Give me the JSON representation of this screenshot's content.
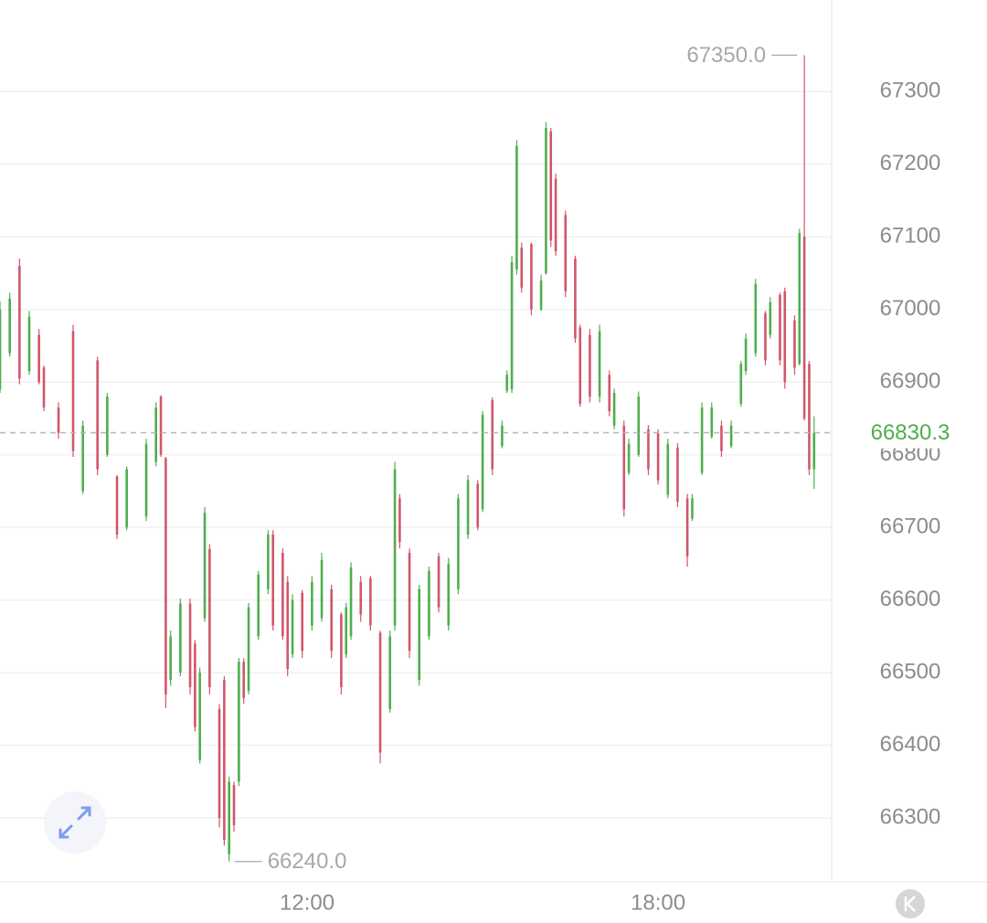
{
  "chart_data": {
    "type": "candlestick",
    "colors": {
      "up": "#4fae4e",
      "down": "#d2566a"
    },
    "xlim": [
      405,
      1258
    ],
    "ylim": [
      66212,
      67426
    ],
    "xticks": [
      {
        "value": 720,
        "label": "12:00"
      },
      {
        "value": 1080,
        "label": "18:00"
      }
    ],
    "yticks": [
      66300,
      66400,
      66500,
      66600,
      66700,
      66800,
      66900,
      67000,
      67100,
      67200,
      67300
    ],
    "grid": true,
    "last_price": {
      "value": 66830.3,
      "label": "66830.3"
    },
    "annotations": [
      {
        "value": 67350,
        "label": "67350.0"
      },
      {
        "value": 66240,
        "label": "66240.0"
      }
    ],
    "x": [
      405,
      415,
      425,
      435,
      445,
      450,
      465,
      480,
      490,
      505,
      515,
      525,
      535,
      555,
      565,
      570,
      575,
      580,
      590,
      600,
      605,
      610,
      615,
      620,
      630,
      635,
      640,
      645,
      650,
      655,
      660,
      670,
      680,
      685,
      695,
      700,
      705,
      715,
      725,
      735,
      745,
      755,
      760,
      765,
      775,
      785,
      795,
      805,
      810,
      815,
      825,
      835,
      845,
      855,
      865,
      875,
      885,
      895,
      900,
      910,
      920,
      925,
      930,
      935,
      940,
      950,
      960,
      965,
      970,
      975,
      985,
      995,
      1000,
      1010,
      1020,
      1030,
      1035,
      1045,
      1050,
      1060,
      1070,
      1080,
      1090,
      1100,
      1110,
      1115,
      1125,
      1135,
      1145,
      1155,
      1165,
      1170,
      1180,
      1190,
      1195,
      1205,
      1210,
      1220,
      1225,
      1230,
      1235,
      1240
    ],
    "candles": [
      [
        66890,
        67011,
        66885,
        67000
      ],
      [
        66940,
        67023,
        66935,
        67015
      ],
      [
        67060,
        67070,
        66897,
        66905
      ],
      [
        66915,
        66998,
        66910,
        66990
      ],
      [
        66965,
        66973,
        66897,
        66900
      ],
      [
        66920,
        66923,
        66860,
        66865
      ],
      [
        66865,
        66872,
        66822,
        66830
      ],
      [
        66970,
        66979,
        66797,
        66805
      ],
      [
        66750,
        66847,
        66746,
        66840
      ],
      [
        66930,
        66935,
        66772,
        66780
      ],
      [
        66800,
        66885,
        66797,
        66880
      ],
      [
        66770,
        66772,
        66684,
        66690
      ],
      [
        66700,
        66784,
        66696,
        66780
      ],
      [
        66715,
        66822,
        66709,
        66815
      ],
      [
        66790,
        66872,
        66784,
        66865
      ],
      [
        66880,
        66882,
        66797,
        66800
      ],
      [
        66795,
        66797,
        66451,
        66470
      ],
      [
        66490,
        66558,
        66482,
        66550
      ],
      [
        66500,
        66602,
        66495,
        66595
      ],
      [
        66595,
        66602,
        66470,
        66480
      ],
      [
        66540,
        66545,
        66419,
        66425
      ],
      [
        66380,
        66507,
        66375,
        66500
      ],
      [
        66575,
        66728,
        66570,
        66720
      ],
      [
        66670,
        66677,
        66470,
        66480
      ],
      [
        66450,
        66457,
        66287,
        66300
      ],
      [
        66490,
        66495,
        66262,
        66270
      ],
      [
        66250,
        66357,
        66240,
        66350
      ],
      [
        66345,
        66350,
        66281,
        66290
      ],
      [
        66350,
        66520,
        66344,
        66515
      ],
      [
        66515,
        66520,
        66457,
        66465
      ],
      [
        66475,
        66596,
        66470,
        66590
      ],
      [
        66550,
        66640,
        66545,
        66635
      ],
      [
        66615,
        66696,
        66608,
        66690
      ],
      [
        66690,
        66696,
        66558,
        66565
      ],
      [
        66665,
        66671,
        66545,
        66550
      ],
      [
        66625,
        66633,
        66495,
        66505
      ],
      [
        66525,
        66608,
        66520,
        66600
      ],
      [
        66610,
        66614,
        66520,
        66530
      ],
      [
        66565,
        66633,
        66558,
        66625
      ],
      [
        66575,
        66665,
        66570,
        66655
      ],
      [
        66615,
        66621,
        66520,
        66530
      ],
      [
        66580,
        66583,
        66470,
        66480
      ],
      [
        66525,
        66596,
        66520,
        66590
      ],
      [
        66550,
        66652,
        66545,
        66645
      ],
      [
        66625,
        66633,
        66570,
        66580
      ],
      [
        66630,
        66633,
        66558,
        66565
      ],
      [
        66555,
        66558,
        66375,
        66390
      ],
      [
        66450,
        66558,
        66445,
        66550
      ],
      [
        66565,
        66790,
        66558,
        66780
      ],
      [
        66740,
        66746,
        66671,
        66680
      ],
      [
        66665,
        66671,
        66520,
        66530
      ],
      [
        66490,
        66621,
        66482,
        66615
      ],
      [
        66550,
        66646,
        66545,
        66640
      ],
      [
        66660,
        66665,
        66583,
        66590
      ],
      [
        66565,
        66658,
        66558,
        66650
      ],
      [
        66615,
        66746,
        66608,
        66740
      ],
      [
        66690,
        66772,
        66684,
        66765
      ],
      [
        66760,
        66765,
        66696,
        66700
      ],
      [
        66725,
        66860,
        66721,
        66855
      ],
      [
        66875,
        66879,
        66772,
        66780
      ],
      [
        66812,
        66847,
        66809,
        66840
      ],
      [
        66888,
        66916,
        66885,
        66910
      ],
      [
        66890,
        67074,
        66885,
        67065
      ],
      [
        67055,
        67233,
        67048,
        67225
      ],
      [
        67085,
        67092,
        67023,
        67030
      ],
      [
        67090,
        67092,
        66992,
        67000
      ],
      [
        67000,
        67048,
        66998,
        67040
      ],
      [
        67050,
        67258,
        67048,
        67250
      ],
      [
        67245,
        67250,
        67086,
        67095
      ],
      [
        67180,
        67187,
        67074,
        67080
      ],
      [
        67130,
        67136,
        67017,
        67025
      ],
      [
        67070,
        67074,
        66954,
        66960
      ],
      [
        66975,
        66979,
        66866,
        66870
      ],
      [
        66965,
        66973,
        66872,
        66880
      ],
      [
        66880,
        66979,
        66872,
        66970
      ],
      [
        66910,
        66916,
        66853,
        66860
      ],
      [
        66840,
        66891,
        66835,
        66885
      ],
      [
        66840,
        66847,
        66715,
        66725
      ],
      [
        66775,
        66822,
        66772,
        66815
      ],
      [
        66800,
        66887,
        66797,
        66880
      ],
      [
        66835,
        66841,
        66772,
        66780
      ],
      [
        66830,
        66835,
        66759,
        66765
      ],
      [
        66745,
        66822,
        66740,
        66815
      ],
      [
        66810,
        66816,
        66728,
        66735
      ],
      [
        66740,
        66746,
        66646,
        66660
      ],
      [
        66712,
        66746,
        66709,
        66740
      ],
      [
        66775,
        66872,
        66772,
        66865
      ],
      [
        66825,
        66872,
        66822,
        66865
      ],
      [
        66840,
        66847,
        66797,
        66805
      ],
      [
        66812,
        66847,
        66809,
        66840
      ],
      [
        66870,
        66929,
        66866,
        66925
      ],
      [
        66915,
        66967,
        66910,
        66960
      ],
      [
        66940,
        67042,
        66935,
        67035
      ],
      [
        66995,
        66998,
        66923,
        66930
      ],
      [
        66965,
        67017,
        66960,
        67010
      ],
      [
        67020,
        67023,
        66923,
        66930
      ],
      [
        67025,
        67030,
        66891,
        66900
      ],
      [
        66985,
        66992,
        66910,
        66920
      ],
      [
        66925,
        67111,
        66923,
        67105
      ],
      [
        67100,
        67350,
        66847,
        66850
      ],
      [
        66925,
        66929,
        66772,
        66780
      ],
      [
        66780,
        66853,
        66753,
        66830.3
      ]
    ]
  }
}
